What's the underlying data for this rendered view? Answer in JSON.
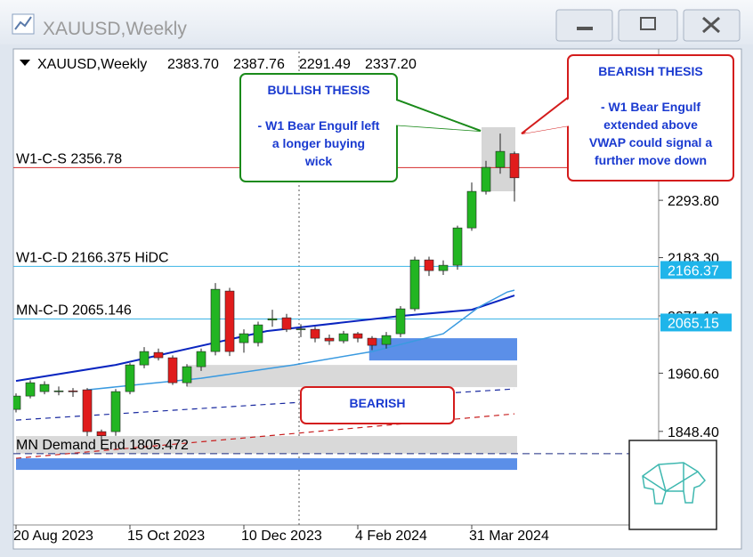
{
  "window": {
    "title": "XAUUSD,Weekly"
  },
  "chart_data": {
    "type": "candlestick",
    "header": {
      "symbol": "XAUUSD,Weekly",
      "ohlc": [
        "2383.70",
        "2387.76",
        "2291.49",
        "2337.20"
      ]
    },
    "categories": [
      "20 Aug 2023",
      null,
      null,
      null,
      null,
      null,
      null,
      null,
      "15 Oct 2023",
      null,
      null,
      null,
      null,
      null,
      null,
      null,
      "10 Dec 2023",
      null,
      null,
      null,
      null,
      null,
      null,
      null,
      "4 Feb 2024",
      null,
      null,
      null,
      null,
      null,
      null,
      null,
      "31 Mar 2024",
      null,
      null,
      null
    ],
    "open": [
      1890.8,
      1916.5,
      1925.1,
      1925.1,
      1926.5,
      1928.5,
      1847.9,
      1847.9,
      1925.1,
      1976.5,
      2000.5,
      1990.3,
      1942.2,
      1973.1,
      2002.3,
      2118.9,
      2019.4,
      2019.4,
      2063,
      2067.4,
      2045.1,
      2045.1,
      2028,
      2022.8,
      2036.6,
      2028,
      2016,
      2036.6,
      2084.6,
      2178.9,
      2158.3,
      2168.6,
      2240.6,
      2311,
      2357.3,
      2383.7
    ],
    "high": [
      1921.6,
      1947,
      1945,
      1935,
      1932,
      1932,
      1852,
      1930,
      1980,
      2010.8,
      2008,
      1995,
      1978,
      2008,
      2134.3,
      2125,
      2045,
      2060,
      2082.9,
      2075,
      2055,
      2050,
      2035,
      2042,
      2040,
      2032,
      2040,
      2090,
      2185,
      2185,
      2178,
      2245,
      2328.1,
      2370,
      2422.4,
      2387.76
    ],
    "low": [
      1885,
      1912,
      1920,
      1918,
      1915,
      1839.4,
      1830,
      1840,
      1920,
      1970,
      1985,
      1938,
      1935,
      1965,
      1995,
      1993.7,
      2000,
      2012,
      2050,
      2040,
      2030,
      2020,
      2015,
      2018,
      2020,
      2005,
      2008,
      2030,
      2080,
      2148,
      2150,
      2160,
      2235,
      2305,
      2345,
      2291.49
    ],
    "close": [
      1916.5,
      1942.2,
      1938.8,
      1926.5,
      1925.1,
      1847.9,
      1840,
      1925.1,
      1976.5,
      2002.3,
      1990.3,
      1942.2,
      1973.1,
      2002.3,
      2122.3,
      2002.3,
      2036.6,
      2053.7,
      2065.7,
      2045.1,
      2046,
      2028,
      2022.8,
      2036.6,
      2028,
      2014.3,
      2033.1,
      2084.6,
      2178.9,
      2158.3,
      2168.6,
      2240.6,
      2311,
      2357.3,
      2388.1,
      2337.2
    ],
    "up_color": "#22b522",
    "down_color": "#e01c1c",
    "ylim": [
      1668,
      2577
    ],
    "yticks": [
      {
        "value": 2293.8,
        "label": "2293.80"
      },
      {
        "value": 2183.3,
        "label": "2183.30"
      },
      {
        "value": 2071.1,
        "label": "2071.10"
      },
      {
        "value": 1960.6,
        "label": "1960.60"
      },
      {
        "value": 1848.4,
        "label": "1848.40"
      }
    ],
    "levels": [
      {
        "label": "W1-C-S 2356.78",
        "value": 2356.78,
        "color": "#d42a2a"
      },
      {
        "label": "W1-C-D 2166.375 HiDC",
        "value": 2166.375,
        "color": "#3cb4e6",
        "badge": "2166.37"
      },
      {
        "label": "MN-C-D 2065.146",
        "value": 2065.146,
        "color": "#3cb4e6",
        "badge": "2065.15"
      },
      {
        "label": "MN Demand End 1805.472",
        "value": 1805.472,
        "color": "#1a2a80",
        "dash": true
      }
    ],
    "zones": [
      {
        "from": 2028,
        "to": 1985.1,
        "start": 24.8,
        "color": "#5b8fe8"
      },
      {
        "from": 1976.5,
        "to": 1933.7,
        "start": 12,
        "color": "#d9d9d9"
      },
      {
        "from": 1839.4,
        "to": 1805.5,
        "start": 0,
        "color": "#d9d9d9"
      },
      {
        "from": 1796.5,
        "to": 1774.2,
        "start": 0,
        "color": "#5b8fe8"
      }
    ],
    "lines": [
      {
        "color": "#0a25c0",
        "width": 2,
        "dash": false,
        "x": [
          0,
          7,
          17.6,
          27,
          32,
          35
        ],
        "values": [
          1945.6,
          1976.5,
          2041.7,
          2070.8,
          2082.9,
          2110.3
        ]
      },
      {
        "color": "#3a9ae0",
        "width": 1.5,
        "dash": false,
        "x": [
          5,
          13,
          19.5,
          25,
          30,
          32.5,
          34.5,
          35
        ],
        "values": [
          1928.5,
          1950.8,
          1976.5,
          2002.3,
          2036.6,
          2088,
          2117.1,
          2120.6
        ]
      },
      {
        "color": "#1a2aa0",
        "width": 1.2,
        "dash": true,
        "x": [
          0,
          35
        ],
        "values": [
          1870.2,
          1930.2
        ]
      },
      {
        "color": "#c82020",
        "width": 1.2,
        "dash": true,
        "x": [
          0,
          35
        ],
        "values": [
          1796.5,
          1882.2
        ]
      }
    ],
    "annotations": [
      {
        "title": "BULLISH THESIS",
        "text": [
          "- W1 Bear Engulf left",
          "a longer buying",
          "wick"
        ],
        "color": "#1a8a1a"
      },
      {
        "title": "BEARISH THESIS",
        "text": [
          "- W1 Bear Engulf",
          "extended above",
          "VWAP could signal a",
          "further move down"
        ],
        "color": "#d41c1c"
      },
      {
        "title": "BEARISH",
        "text": [],
        "color": "#d41c1c"
      }
    ]
  }
}
